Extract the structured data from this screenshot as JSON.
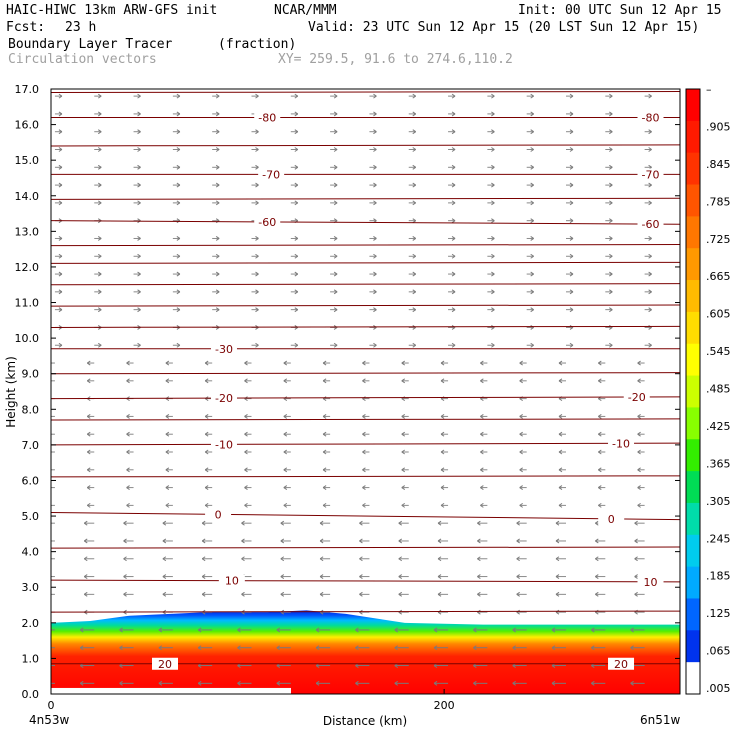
{
  "header": {
    "model": "HAIC-HIWC 13km ARW-GFS init",
    "org": "NCAR/MMM",
    "init": "Init: 00 UTC Sun 12 Apr 15",
    "fcst_label": "Fcst:",
    "fcst_value": "23 h",
    "valid": "Valid: 23 UTC Sun 12 Apr 15 (20 LST Sun 12 Apr 15)",
    "field1": "Boundary Layer Tracer",
    "field1_units": "(fraction)",
    "field2": "Circulation vectors",
    "xy": "XY= 259.5, 91.6 to 274.6,110.2"
  },
  "chart_data": {
    "type": "heatmap",
    "title": "Boundary Layer Tracer (fraction)",
    "xlabel": "Distance (km)",
    "ylabel": "Height (km)",
    "xlim": [
      0,
      320
    ],
    "ylim": [
      0,
      17
    ],
    "x_ticks": [
      "0",
      "200"
    ],
    "x_end_labels": [
      "4n53w",
      "6n51w"
    ],
    "y_ticks": [
      "0.0",
      "1.0",
      "2.0",
      "3.0",
      "4.0",
      "5.0",
      "6.0",
      "7.0",
      "8.0",
      "9.0",
      "10.0",
      "11.0",
      "12.0",
      "13.0",
      "14.0",
      "15.0",
      "16.0",
      "17.0"
    ],
    "colorbar": {
      "labels": [
        "–",
        ".905",
        ".845",
        ".785",
        ".725",
        ".665",
        ".605",
        ".545",
        ".485",
        ".425",
        ".365",
        ".305",
        ".245",
        ".185",
        ".125",
        ".065",
        ".005"
      ],
      "colors": [
        "#ff0000",
        "#ff1a00",
        "#ff3300",
        "#ff5500",
        "#ff7700",
        "#ff9900",
        "#ffbb00",
        "#ffdd00",
        "#ffff00",
        "#ccff00",
        "#88ff00",
        "#33ee00",
        "#00dd55",
        "#00ddaa",
        "#00ccee",
        "#00aaff",
        "#0066ff",
        "#0033ee",
        "#ffffff"
      ]
    },
    "boundary_layer_top_km": [
      {
        "x": 0,
        "y": 2.0
      },
      {
        "x": 20,
        "y": 2.05
      },
      {
        "x": 40,
        "y": 2.2
      },
      {
        "x": 80,
        "y": 2.3
      },
      {
        "x": 110,
        "y": 2.3
      },
      {
        "x": 130,
        "y": 2.35
      },
      {
        "x": 150,
        "y": 2.25
      },
      {
        "x": 180,
        "y": 2.0
      },
      {
        "x": 220,
        "y": 1.95
      },
      {
        "x": 280,
        "y": 1.95
      },
      {
        "x": 320,
        "y": 1.95
      }
    ],
    "temperature_contours": [
      {
        "label": "-80",
        "y0": 16.2,
        "y1": 16.2,
        "label_x": [
          110,
          305
        ]
      },
      {
        "label": "-70",
        "y0": 14.6,
        "y1": 14.6,
        "label_x": [
          112,
          305
        ]
      },
      {
        "label": "-60",
        "y0": 13.3,
        "y1": 13.2,
        "label_x": [
          110,
          305
        ]
      },
      {
        "label": "-30",
        "y0": 9.7,
        "y1": 9.7,
        "label_x": [
          88
        ]
      },
      {
        "label": "-20",
        "y0": 8.3,
        "y1": 8.35,
        "label_x": [
          88,
          298
        ]
      },
      {
        "label": "-10",
        "y0": 7.0,
        "y1": 7.05,
        "label_x": [
          88,
          290
        ]
      },
      {
        "label": "0",
        "y0": 5.1,
        "y1": 4.9,
        "label_x": [
          85,
          285
        ]
      },
      {
        "label": "10",
        "y0": 3.2,
        "y1": 3.15,
        "label_x": [
          92,
          305
        ]
      },
      {
        "label": "20",
        "y0": 0.85,
        "y1": 0.85,
        "label_x": [
          58,
          290
        ]
      }
    ],
    "unlabeled_contour_heights_km": [
      16.9,
      15.4,
      13.9,
      12.6,
      12.1,
      11.5,
      10.9,
      10.3,
      9.0,
      7.7,
      6.1,
      4.1,
      2.3
    ],
    "grid": false,
    "legend": "right"
  }
}
